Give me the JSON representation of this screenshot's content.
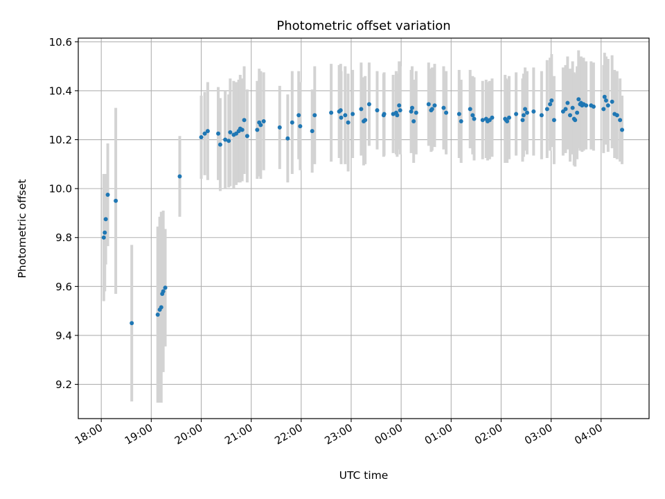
{
  "chart_data": {
    "type": "scatter",
    "title": "Photometric offset variation",
    "xlabel": "UTC time",
    "ylabel": "Photometric offset",
    "x_unit": "hours after 18:00 UTC",
    "xlim": [
      -0.46,
      10.96
    ],
    "ylim": [
      9.06,
      10.615
    ],
    "grid": true,
    "x_ticks": [
      {
        "value": 0,
        "label": "18:00"
      },
      {
        "value": 1,
        "label": "19:00"
      },
      {
        "value": 2,
        "label": "20:00"
      },
      {
        "value": 3,
        "label": "21:00"
      },
      {
        "value": 4,
        "label": "22:00"
      },
      {
        "value": 5,
        "label": "23:00"
      },
      {
        "value": 6,
        "label": "00:00"
      },
      {
        "value": 7,
        "label": "01:00"
      },
      {
        "value": 8,
        "label": "02:00"
      },
      {
        "value": 9,
        "label": "03:00"
      },
      {
        "value": 10,
        "label": "04:00"
      }
    ],
    "y_ticks": [
      9.2,
      9.4,
      9.6,
      9.8,
      10.0,
      10.2,
      10.4,
      10.6
    ],
    "y_tick_labels": [
      "9.2",
      "9.4",
      "9.6",
      "9.8",
      "10.0",
      "10.2",
      "10.4",
      "10.6"
    ],
    "point_color": "#1f77b4",
    "errorbar_color": "#d3d3d3",
    "points": [
      [
        0.05,
        9.8,
        0.26
      ],
      [
        0.07,
        9.82,
        0.24
      ],
      [
        0.09,
        9.875,
        0.185
      ],
      [
        0.13,
        9.975,
        0.21
      ],
      [
        0.29,
        9.95,
        0.38
      ],
      [
        0.61,
        9.45,
        0.32
      ],
      [
        1.13,
        9.485,
        0.36
      ],
      [
        1.17,
        9.505,
        0.38
      ],
      [
        1.2,
        9.515,
        0.39
      ],
      [
        1.22,
        9.57,
        0.32
      ],
      [
        1.24,
        9.58,
        0.33
      ],
      [
        1.28,
        9.595,
        0.24
      ],
      [
        1.57,
        10.05,
        0.165
      ],
      [
        2.0,
        10.21,
        0.17
      ],
      [
        2.07,
        10.225,
        0.17
      ],
      [
        2.13,
        10.235,
        0.2
      ],
      [
        2.34,
        10.225,
        0.19
      ],
      [
        2.38,
        10.18,
        0.19
      ],
      [
        2.48,
        10.2,
        0.2
      ],
      [
        2.55,
        10.195,
        0.19
      ],
      [
        2.58,
        10.23,
        0.22
      ],
      [
        2.65,
        10.22,
        0.22
      ],
      [
        2.7,
        10.225,
        0.21
      ],
      [
        2.75,
        10.235,
        0.21
      ],
      [
        2.78,
        10.245,
        0.22
      ],
      [
        2.82,
        10.24,
        0.21
      ],
      [
        2.86,
        10.28,
        0.22
      ],
      [
        2.92,
        10.215,
        0.19
      ],
      [
        3.12,
        10.24,
        0.2
      ],
      [
        3.16,
        10.27,
        0.22
      ],
      [
        3.19,
        10.26,
        0.22
      ],
      [
        3.25,
        10.275,
        0.2
      ],
      [
        3.57,
        10.25,
        0.17
      ],
      [
        3.73,
        10.205,
        0.18
      ],
      [
        3.82,
        10.27,
        0.21
      ],
      [
        3.95,
        10.3,
        0.18
      ],
      [
        3.98,
        10.255,
        0.18
      ],
      [
        4.22,
        10.235,
        0.17
      ],
      [
        4.27,
        10.3,
        0.2
      ],
      [
        4.6,
        10.31,
        0.2
      ],
      [
        4.76,
        10.315,
        0.19
      ],
      [
        4.79,
        10.32,
        0.19
      ],
      [
        4.8,
        10.29,
        0.19
      ],
      [
        4.88,
        10.3,
        0.2
      ],
      [
        4.94,
        10.27,
        0.2
      ],
      [
        5.03,
        10.305,
        0.18
      ],
      [
        5.2,
        10.325,
        0.19
      ],
      [
        5.25,
        10.275,
        0.18
      ],
      [
        5.28,
        10.28,
        0.18
      ],
      [
        5.36,
        10.345,
        0.17
      ],
      [
        5.52,
        10.32,
        0.16
      ],
      [
        5.65,
        10.3,
        0.17
      ],
      [
        5.66,
        10.305,
        0.17
      ],
      [
        5.84,
        10.305,
        0.16
      ],
      [
        5.9,
        10.31,
        0.17
      ],
      [
        5.92,
        10.3,
        0.17
      ],
      [
        5.96,
        10.34,
        0.18
      ],
      [
        5.98,
        10.32,
        0.18
      ],
      [
        6.2,
        10.315,
        0.17
      ],
      [
        6.22,
        10.33,
        0.17
      ],
      [
        6.25,
        10.275,
        0.17
      ],
      [
        6.3,
        10.31,
        0.17
      ],
      [
        6.55,
        10.345,
        0.17
      ],
      [
        6.6,
        10.32,
        0.17
      ],
      [
        6.62,
        10.325,
        0.17
      ],
      [
        6.67,
        10.34,
        0.17
      ],
      [
        6.85,
        10.33,
        0.17
      ],
      [
        6.9,
        10.31,
        0.17
      ],
      [
        7.16,
        10.305,
        0.18
      ],
      [
        7.2,
        10.275,
        0.17
      ],
      [
        7.38,
        10.325,
        0.16
      ],
      [
        7.43,
        10.3,
        0.16
      ],
      [
        7.46,
        10.285,
        0.17
      ],
      [
        7.63,
        10.28,
        0.16
      ],
      [
        7.7,
        10.285,
        0.16
      ],
      [
        7.73,
        10.275,
        0.16
      ],
      [
        7.77,
        10.28,
        0.16
      ],
      [
        7.82,
        10.29,
        0.16
      ],
      [
        8.08,
        10.285,
        0.18
      ],
      [
        8.1,
        10.28,
        0.17
      ],
      [
        8.12,
        10.275,
        0.17
      ],
      [
        8.16,
        10.29,
        0.17
      ],
      [
        8.3,
        10.305,
        0.17
      ],
      [
        8.43,
        10.28,
        0.17
      ],
      [
        8.45,
        10.3,
        0.17
      ],
      [
        8.48,
        10.325,
        0.17
      ],
      [
        8.52,
        10.31,
        0.17
      ],
      [
        8.65,
        10.315,
        0.18
      ],
      [
        8.81,
        10.3,
        0.18
      ],
      [
        8.92,
        10.325,
        0.2
      ],
      [
        8.98,
        10.345,
        0.19
      ],
      [
        9.01,
        10.36,
        0.19
      ],
      [
        9.06,
        10.28,
        0.18
      ],
      [
        9.24,
        10.315,
        0.18
      ],
      [
        9.29,
        10.325,
        0.18
      ],
      [
        9.33,
        10.35,
        0.19
      ],
      [
        9.38,
        10.3,
        0.19
      ],
      [
        9.43,
        10.33,
        0.19
      ],
      [
        9.46,
        10.285,
        0.19
      ],
      [
        9.48,
        10.28,
        0.19
      ],
      [
        9.52,
        10.31,
        0.19
      ],
      [
        9.55,
        10.365,
        0.2
      ],
      [
        9.58,
        10.345,
        0.19
      ],
      [
        9.6,
        10.35,
        0.19
      ],
      [
        9.62,
        10.34,
        0.19
      ],
      [
        9.65,
        10.345,
        0.19
      ],
      [
        9.7,
        10.34,
        0.18
      ],
      [
        9.8,
        10.34,
        0.18
      ],
      [
        9.85,
        10.335,
        0.18
      ],
      [
        10.05,
        10.325,
        0.18
      ],
      [
        10.07,
        10.375,
        0.18
      ],
      [
        10.1,
        10.36,
        0.18
      ],
      [
        10.14,
        10.34,
        0.19
      ],
      [
        10.22,
        10.355,
        0.19
      ],
      [
        10.27,
        10.305,
        0.18
      ],
      [
        10.32,
        10.3,
        0.18
      ],
      [
        10.38,
        10.28,
        0.17
      ],
      [
        10.42,
        10.24,
        0.14
      ]
    ]
  }
}
